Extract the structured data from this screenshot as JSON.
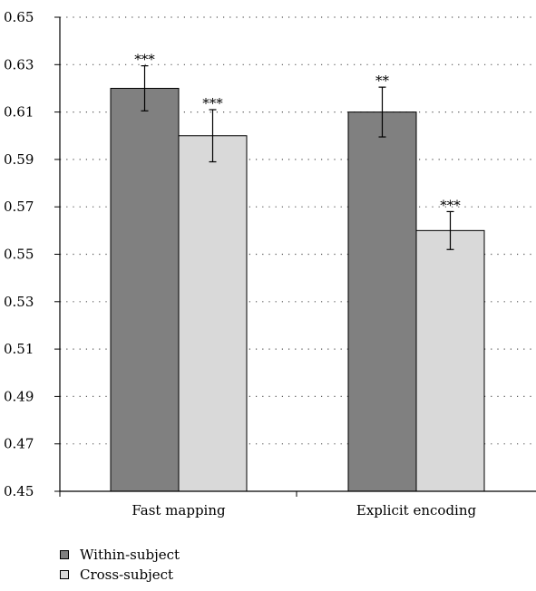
{
  "chart_data": {
    "type": "bar",
    "categories": [
      "Fast mapping",
      "Explicit encoding"
    ],
    "series": [
      {
        "name": "Within-subject",
        "color": "#808080",
        "values": [
          0.62,
          0.61
        ],
        "error": [
          0.0095,
          0.0105
        ],
        "significance": [
          "***",
          "**"
        ]
      },
      {
        "name": "Cross-subject",
        "color": "#d9d9d9",
        "values": [
          0.6,
          0.56
        ],
        "error": [
          0.011,
          0.008
        ],
        "significance": [
          "***",
          "***"
        ]
      }
    ],
    "ylim": [
      0.45,
      0.65
    ],
    "yticks": [
      "0.45",
      "0.47",
      "0.49",
      "0.51",
      "0.53",
      "0.55",
      "0.57",
      "0.59",
      "0.61",
      "0.63",
      "0.65"
    ],
    "grid": "horizontal-dotted",
    "legend_position": "bottom-left"
  }
}
